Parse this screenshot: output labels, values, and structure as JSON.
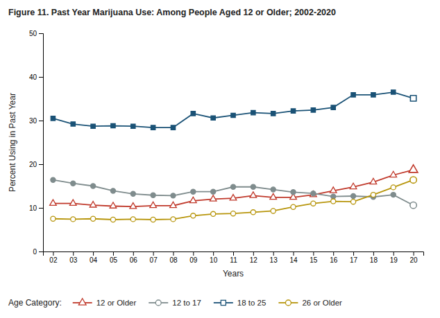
{
  "chart_data": {
    "type": "line",
    "title": "Figure 11. Past Year Marijuana Use: Among People Aged 12 or Older; 2002-2020",
    "x_label": "Years",
    "y_label": "Percent Using in Past Year",
    "legend_title": "Age Category:",
    "categories": [
      "02",
      "03",
      "04",
      "05",
      "06",
      "07",
      "08",
      "09",
      "10",
      "11",
      "12",
      "13",
      "14",
      "15",
      "16",
      "17",
      "18",
      "19",
      "20"
    ],
    "series": [
      {
        "name": "12 or Older",
        "color": "#c0392b",
        "marker": "triangle-open",
        "values": [
          11.0,
          11.0,
          10.6,
          10.4,
          10.3,
          10.5,
          10.5,
          11.6,
          12.0,
          12.2,
          12.8,
          12.4,
          12.4,
          13.0,
          13.9,
          14.8,
          15.9,
          17.5,
          18.7
        ]
      },
      {
        "name": "12 to 17",
        "color": "#7f8c8d",
        "marker": "circle",
        "values": [
          16.4,
          15.6,
          15.0,
          13.9,
          13.2,
          12.9,
          12.8,
          13.7,
          13.7,
          14.8,
          14.8,
          14.2,
          13.6,
          13.3,
          12.6,
          12.7,
          12.5,
          13.0,
          10.6
        ]
      },
      {
        "name": "18 to 25",
        "color": "#1a5276",
        "marker": "square",
        "values": [
          30.5,
          29.2,
          28.7,
          28.8,
          28.7,
          28.4,
          28.4,
          31.6,
          30.6,
          31.2,
          31.8,
          31.6,
          32.2,
          32.4,
          33.0,
          35.9,
          35.9,
          36.5,
          35.1
        ]
      },
      {
        "name": "26 or Older",
        "color": "#b7950b",
        "marker": "circle-open",
        "values": [
          7.5,
          7.4,
          7.5,
          7.3,
          7.4,
          7.3,
          7.4,
          8.2,
          8.6,
          8.7,
          9.0,
          9.3,
          10.2,
          11.0,
          11.5,
          11.4,
          13.0,
          14.7,
          16.4
        ]
      }
    ],
    "ylim": [
      0,
      50
    ],
    "yticks": [
      0,
      10,
      20,
      30,
      40,
      50
    ],
    "grid": false,
    "legend": "bottom"
  }
}
